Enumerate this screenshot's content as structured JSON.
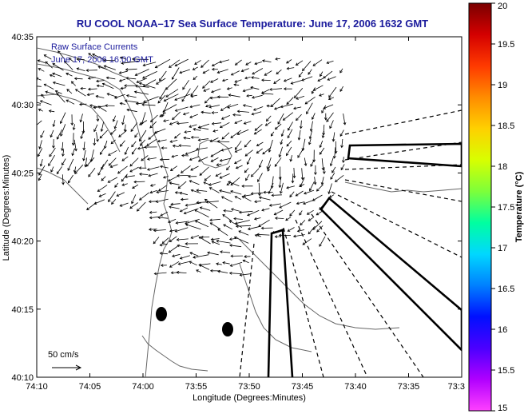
{
  "title": "RU COOL  NOAA–17  Sea Surface Temperature:  June 17, 2006 1632 GMT",
  "annotation": {
    "line1": "Raw Surface Currents",
    "line2": "June 17, 2006 16:00 GMT"
  },
  "scale_label": "50 cm/s",
  "colorbar": {
    "label": "Temperature (°C)",
    "ticks": [
      "20",
      "19.5",
      "19",
      "18.5",
      "18",
      "17.5",
      "17",
      "16.5",
      "16",
      "15.5",
      "15"
    ],
    "gradient": [
      "#7a0000",
      "#d40000",
      "#ff3a00",
      "#ff8c00",
      "#ffd000",
      "#d8ff00",
      "#7dff3a",
      "#00ffa0",
      "#00d8ff",
      "#0080ff",
      "#0010ff",
      "#4b00ff",
      "#b000ff",
      "#ff40ff"
    ]
  },
  "map": {
    "xlabel": "Longitude (Degrees:Minutes)",
    "ylabel": "Latitude (Degrees:Minutes)",
    "x_ticks": [
      "74:10",
      "74:05",
      "74:00",
      "73:55",
      "73:50",
      "73:45",
      "73:40",
      "73:35",
      "73:3"
    ],
    "y_ticks": [
      "40:35",
      "40:30",
      "40:25",
      "40:20",
      "40:15",
      "40:10"
    ],
    "coastline_color": "#666666",
    "vector_color": "#000000"
  }
}
